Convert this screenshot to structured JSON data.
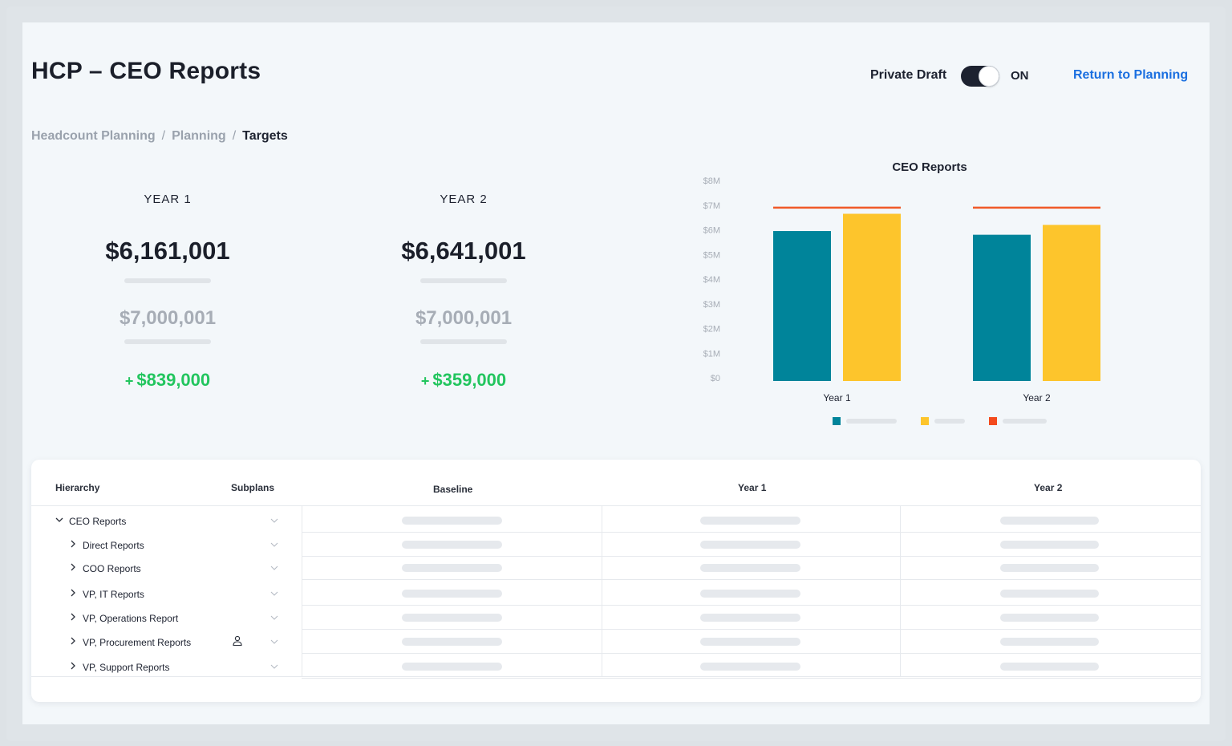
{
  "header": {
    "title": "HCP – CEO Reports",
    "draft_label": "Private Draft",
    "toggle_state": "ON",
    "return_link": "Return to Planning"
  },
  "breadcrumb": [
    "Headcount Planning",
    "Planning",
    "Targets"
  ],
  "metrics": [
    {
      "label": "YEAR 1",
      "amount": "$6,161,001",
      "target": "$7,000,001",
      "delta_sign": "+",
      "delta": "$839,000"
    },
    {
      "label": "YEAR 2",
      "amount": "$6,641,001",
      "target": "$7,000,001",
      "delta_sign": "+",
      "delta": "$359,000"
    }
  ],
  "chart_data": {
    "type": "bar",
    "title": "CEO Reports",
    "categories": [
      "Year 1",
      "Year 2"
    ],
    "series": [
      {
        "values": [
          5.95,
          5.8
        ],
        "color": "#00849a"
      },
      {
        "values": [
          6.65,
          6.2
        ],
        "color": "#fdc52c"
      }
    ],
    "target_line": {
      "values": [
        6.9,
        6.9
      ],
      "color": "#f05a28"
    },
    "yticks": [
      "$0",
      "$1M",
      "$2M",
      "$3M",
      "$4M",
      "$5M",
      "$6M",
      "$7M",
      "$8M"
    ],
    "ylim": [
      0,
      8
    ],
    "legend_colors": [
      "#00849a",
      "#fdc52c",
      "#f34a1d"
    ],
    "legend_placement": "bottom",
    "grid": false
  },
  "table": {
    "columns": {
      "hierarchy": "Hierarchy",
      "subplans": "Subplans",
      "baseline": "Baseline",
      "year1": "Year 1",
      "year2": "Year 2"
    },
    "rows": [
      {
        "name": "CEO Reports",
        "expanded": true,
        "level": 0,
        "has_person": false
      },
      {
        "name": "Direct Reports",
        "expanded": false,
        "level": 1,
        "has_person": false
      },
      {
        "name": "COO Reports",
        "expanded": false,
        "level": 1,
        "has_person": false
      },
      {
        "name": "VP, IT Reports",
        "expanded": false,
        "level": 1,
        "has_person": false
      },
      {
        "name": "VP, Operations Report",
        "expanded": false,
        "level": 1,
        "has_person": false
      },
      {
        "name": "VP, Procurement Reports",
        "expanded": false,
        "level": 1,
        "has_person": true
      },
      {
        "name": "VP, Support Reports",
        "expanded": false,
        "level": 1,
        "has_person": false
      }
    ]
  },
  "icons": {
    "expand": "chevron-down-icon",
    "collapse": "chevron-right-icon",
    "subplan_select": "chevron-down-icon",
    "person": "person-icon"
  }
}
